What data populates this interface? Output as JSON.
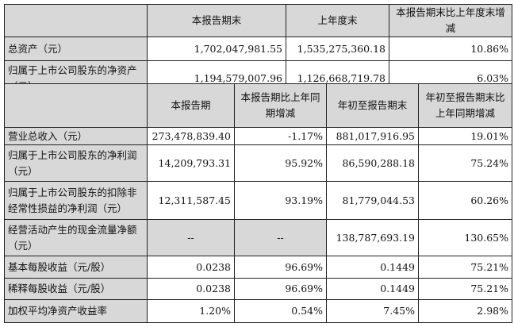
{
  "balance": {
    "headers": [
      "",
      "本报告期末",
      "上年度末",
      "本报告期末比上年度末增减"
    ],
    "rows": [
      {
        "label": "总资产（元）",
        "values": [
          "1,702,047,981.55",
          "1,535,275,360.18",
          "10.86%"
        ]
      },
      {
        "label": "归属于上市公司股东的净资产（元）",
        "values": [
          "1,194,579,007.96",
          "1,126,668,719.78",
          "6.03%"
        ]
      }
    ]
  },
  "income": {
    "headers": [
      "",
      "本报告期",
      "本报告期比上年同期增减",
      "年初至报告期末",
      "年初至报告期末比上年同期增减"
    ],
    "rows": [
      {
        "label": "营业总收入（元）",
        "values": [
          "273,478,839.40",
          "-1.17%",
          "881,017,916.95",
          "19.01%"
        ]
      },
      {
        "label": "归属于上市公司股东的净利润（元）",
        "values": [
          "14,209,793.31",
          "95.92%",
          "86,590,288.18",
          "75.24%"
        ]
      },
      {
        "label": "归属于上市公司股东的扣除非经常性损益的净利润（元）",
        "values": [
          "12,311,587.45",
          "93.19%",
          "81,779,044.53",
          "60.26%"
        ]
      },
      {
        "label": "经营活动产生的现金流量净额（元）",
        "values": [
          "--",
          "--",
          "138,787,693.19",
          "130.65%"
        ]
      },
      {
        "label": "基本每股收益（元/股）",
        "values": [
          "0.0238",
          "96.69%",
          "0.1449",
          "75.21%"
        ]
      },
      {
        "label": "稀释每股收益（元/股）",
        "values": [
          "0.0238",
          "96.69%",
          "0.1449",
          "75.21%"
        ]
      },
      {
        "label": "加权平均净资产收益率",
        "values": [
          "1.20%",
          "0.54%",
          "7.45%",
          "2.98%"
        ]
      }
    ]
  },
  "colors": {
    "header_bg": "#d8d8d8",
    "border": "#222222"
  }
}
